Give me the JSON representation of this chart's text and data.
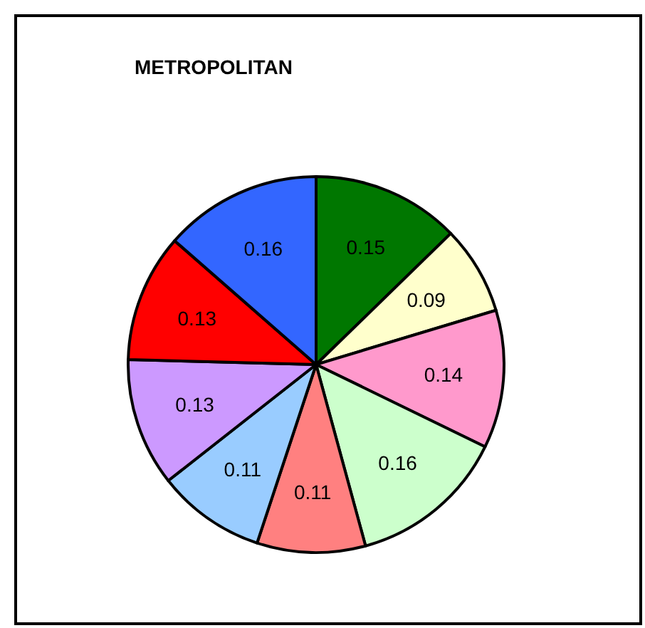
{
  "chart_data": {
    "type": "pie",
    "title": "METROPOLITAN",
    "categories": [
      null,
      null,
      null,
      null,
      null,
      null,
      null,
      null,
      null
    ],
    "values": [
      0.15,
      0.09,
      0.14,
      0.16,
      0.11,
      0.11,
      0.13,
      0.13,
      0.16
    ],
    "colors": [
      "#007700",
      "#ffffcc",
      "#ff99cc",
      "#ccffcc",
      "#ff8080",
      "#99ccff",
      "#cc99ff",
      "#ff0000",
      "#3366ff"
    ],
    "data_labels": true
  }
}
